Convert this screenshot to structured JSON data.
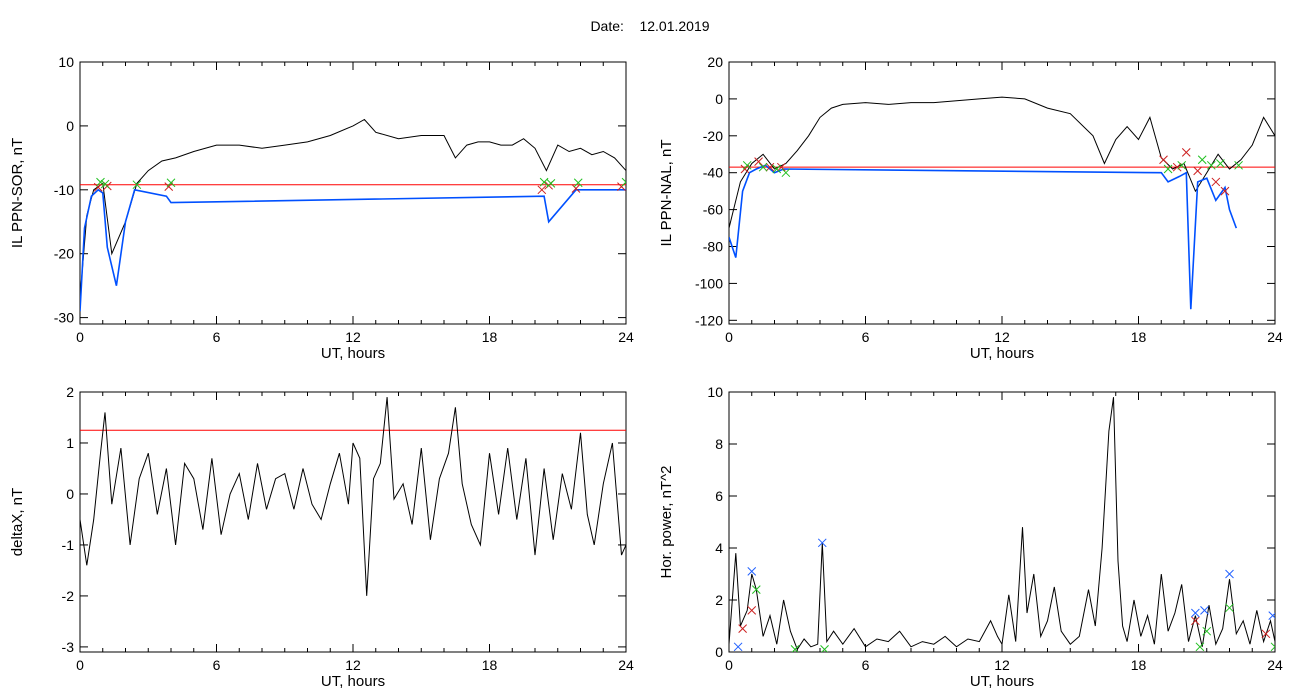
{
  "header": {
    "date_label": "Date:",
    "date_value": "12.01.2019"
  },
  "chart_data": [
    {
      "type": "line",
      "ylabel": "IL PPN-SOR, nT",
      "xlabel": "UT, hours",
      "xlim": [
        0,
        24
      ],
      "ylim": [
        -31,
        10
      ],
      "xticks": [
        0,
        6,
        12,
        18,
        24
      ],
      "yticks": [
        -30,
        -20,
        -10,
        0,
        10
      ],
      "threshold": -9.2,
      "threshold_color": "#ff0000",
      "series": [
        {
          "color": "#000000",
          "x": [
            0,
            0.3,
            0.6,
            1.0,
            1.4,
            2.0,
            2.5,
            3.0,
            3.6,
            4.2,
            5.0,
            6.0,
            7.0,
            8.0,
            9.0,
            10.0,
            11.0,
            12.0,
            12.5,
            13.0,
            14.0,
            15.0,
            16.0,
            16.5,
            17.0,
            17.5,
            18.0,
            18.5,
            19.0,
            19.5,
            20.0,
            20.5,
            21.0,
            21.5,
            22.0,
            22.5,
            23.0,
            23.5,
            24.0
          ],
          "y": [
            -27,
            -14,
            -10,
            -9,
            -20,
            -15,
            -9,
            -7,
            -5.5,
            -5,
            -4,
            -3,
            -3,
            -3.5,
            -3,
            -2.5,
            -1.5,
            0,
            1,
            -1,
            -2,
            -1.5,
            -1.5,
            -5,
            -3,
            -2.5,
            -2.5,
            -3,
            -3,
            -2,
            -3.5,
            -7,
            -3,
            -4,
            -3.5,
            -4.5,
            -4,
            -5,
            -7
          ]
        },
        {
          "color": "#0050ff",
          "x": [
            0,
            0.2,
            0.5,
            0.8,
            1.0,
            1.2,
            1.6,
            2.0,
            2.4,
            3.8,
            4.0,
            20.4,
            20.6,
            21.8,
            24.0
          ],
          "y": [
            -29,
            -16,
            -11,
            -10,
            -10.5,
            -19,
            -25,
            -15,
            -10,
            -11,
            -12,
            -11,
            -15,
            -10,
            -10
          ]
        }
      ],
      "markers_red": [
        [
          0.8,
          -9.6
        ],
        [
          1.2,
          -9.4
        ],
        [
          3.9,
          -9.5
        ],
        [
          20.3,
          -10
        ],
        [
          20.6,
          -9.3
        ],
        [
          21.8,
          -9.8
        ],
        [
          23.8,
          -9.5
        ]
      ],
      "markers_green": [
        [
          0.9,
          -8.8
        ],
        [
          1.1,
          -9.1
        ],
        [
          2.5,
          -9.2
        ],
        [
          4.0,
          -8.9
        ],
        [
          20.4,
          -8.8
        ],
        [
          20.7,
          -9
        ],
        [
          21.9,
          -8.9
        ],
        [
          24.0,
          -8.8
        ]
      ]
    },
    {
      "type": "line",
      "ylabel": "IL PPN-NAL, nT",
      "xlabel": "UT, hours",
      "xlim": [
        0,
        24
      ],
      "ylim": [
        -122,
        20
      ],
      "xticks": [
        0,
        6,
        12,
        18,
        24
      ],
      "yticks": [
        -120,
        -100,
        -80,
        -60,
        -40,
        -20,
        0,
        20
      ],
      "threshold": -37,
      "threshold_color": "#ff0000",
      "series": [
        {
          "color": "#000000",
          "x": [
            0,
            0.5,
            1.0,
            1.5,
            2.0,
            2.5,
            3.0,
            3.5,
            4.0,
            4.5,
            5.0,
            6.0,
            7.0,
            8.0,
            9.0,
            10.0,
            11.0,
            12.0,
            13.0,
            14.0,
            15.0,
            16.0,
            16.5,
            17.0,
            17.5,
            18.0,
            18.5,
            19.0,
            19.5,
            20.0,
            20.5,
            21.0,
            21.5,
            22.0,
            22.5,
            23.0,
            23.5,
            24.0
          ],
          "y": [
            -70,
            -45,
            -35,
            -30,
            -38,
            -35,
            -28,
            -20,
            -10,
            -5,
            -3,
            -2,
            -3,
            -2,
            -2,
            -1,
            0,
            1,
            0,
            -5,
            -8,
            -20,
            -35,
            -22,
            -15,
            -22,
            -10,
            -32,
            -38,
            -35,
            -50,
            -40,
            -30,
            -38,
            -33,
            -25,
            -10,
            -20
          ]
        },
        {
          "color": "#0050ff",
          "x": [
            0,
            0.3,
            0.6,
            0.9,
            1.2,
            1.6,
            2.0,
            2.4,
            19.0,
            19.3,
            19.8,
            20.1,
            20.3,
            20.6,
            21.0,
            21.4,
            21.8,
            22.0,
            22.3
          ],
          "y": [
            -75,
            -86,
            -50,
            -40,
            -38,
            -36,
            -40,
            -38,
            -40,
            -45,
            -42,
            -40,
            -114,
            -45,
            -43,
            -55,
            -48,
            -60,
            -70
          ]
        }
      ],
      "markers_red": [
        [
          0.7,
          -38
        ],
        [
          1.3,
          -34
        ],
        [
          1.8,
          -37
        ],
        [
          2.3,
          -37
        ],
        [
          19.1,
          -33
        ],
        [
          19.7,
          -37
        ],
        [
          20.1,
          -29
        ],
        [
          20.6,
          -39
        ],
        [
          21.4,
          -45
        ],
        [
          21.8,
          -50
        ]
      ],
      "markers_green": [
        [
          0.8,
          -36
        ],
        [
          1.5,
          -37
        ],
        [
          2.1,
          -38
        ],
        [
          2.5,
          -40
        ],
        [
          19.3,
          -38
        ],
        [
          19.9,
          -36
        ],
        [
          20.8,
          -33
        ],
        [
          21.2,
          -36
        ],
        [
          21.6,
          -35
        ],
        [
          22.4,
          -36
        ]
      ]
    },
    {
      "type": "line",
      "ylabel": "deltaX, nT",
      "xlabel": "UT, hours",
      "xlim": [
        0,
        24
      ],
      "ylim": [
        -3.1,
        2
      ],
      "xticks": [
        0,
        6,
        12,
        18,
        24
      ],
      "yticks": [
        -3,
        -2,
        -1,
        0,
        1,
        2
      ],
      "threshold": 1.25,
      "threshold_color": "#ff0000",
      "series": [
        {
          "color": "#000000",
          "x": [
            0,
            0.3,
            0.6,
            0.9,
            1.1,
            1.4,
            1.8,
            2.2,
            2.6,
            3.0,
            3.4,
            3.8,
            4.2,
            4.6,
            5.0,
            5.4,
            5.8,
            6.2,
            6.6,
            7.0,
            7.4,
            7.8,
            8.2,
            8.6,
            9.0,
            9.4,
            9.8,
            10.2,
            10.6,
            11.0,
            11.4,
            11.8,
            12.0,
            12.3,
            12.6,
            12.9,
            13.2,
            13.5,
            13.8,
            14.2,
            14.6,
            15.0,
            15.4,
            15.8,
            16.2,
            16.5,
            16.8,
            17.2,
            17.6,
            18.0,
            18.4,
            18.8,
            19.2,
            19.6,
            20.0,
            20.4,
            20.8,
            21.2,
            21.6,
            22.0,
            22.3,
            22.6,
            23.0,
            23.4,
            23.8,
            24.0
          ],
          "y": [
            -0.5,
            -1.4,
            -0.5,
            0.8,
            1.6,
            -0.2,
            0.9,
            -1.0,
            0.3,
            0.8,
            -0.4,
            0.5,
            -1.0,
            0.6,
            0.3,
            -0.7,
            0.7,
            -0.8,
            0.0,
            0.4,
            -0.5,
            0.6,
            -0.3,
            0.3,
            0.4,
            -0.3,
            0.5,
            -0.2,
            -0.5,
            0.2,
            0.8,
            -0.2,
            1.0,
            0.7,
            -2.0,
            0.3,
            0.6,
            1.9,
            -0.1,
            0.2,
            -0.6,
            0.9,
            -0.9,
            0.3,
            0.8,
            1.7,
            0.2,
            -0.6,
            -1.0,
            0.8,
            -0.4,
            0.9,
            -0.5,
            0.7,
            -1.2,
            0.5,
            -0.9,
            0.4,
            -0.3,
            1.2,
            -0.4,
            -1.0,
            0.2,
            1.0,
            -1.2,
            -1.0
          ]
        }
      ]
    },
    {
      "type": "line",
      "ylabel": "Hor. power, nT^2",
      "xlabel": "UT, hours",
      "xlim": [
        0,
        24
      ],
      "ylim": [
        0,
        10
      ],
      "xticks": [
        0,
        6,
        12,
        18,
        24
      ],
      "yticks": [
        0,
        2,
        4,
        6,
        8,
        10
      ],
      "series": [
        {
          "color": "#000000",
          "x": [
            0,
            0.3,
            0.5,
            0.8,
            1.0,
            1.2,
            1.5,
            1.8,
            2.1,
            2.4,
            2.7,
            3.0,
            3.3,
            3.6,
            3.9,
            4.1,
            4.3,
            4.6,
            5.0,
            5.5,
            6.0,
            6.5,
            7.0,
            7.5,
            8.0,
            8.5,
            9.0,
            9.5,
            10.0,
            10.5,
            11.0,
            11.5,
            11.8,
            12.0,
            12.3,
            12.6,
            12.9,
            13.1,
            13.4,
            13.7,
            14.0,
            14.3,
            14.6,
            15.0,
            15.4,
            15.8,
            16.1,
            16.4,
            16.7,
            16.9,
            17.1,
            17.3,
            17.5,
            17.8,
            18.1,
            18.4,
            18.7,
            19.0,
            19.3,
            19.6,
            19.9,
            20.2,
            20.5,
            20.8,
            21.1,
            21.4,
            21.7,
            22.0,
            22.3,
            22.6,
            22.9,
            23.2,
            23.5,
            23.8,
            24.0
          ],
          "y": [
            0.3,
            3.8,
            1.0,
            1.6,
            3.0,
            2.4,
            0.6,
            1.4,
            0.3,
            2.0,
            0.8,
            0.1,
            0.5,
            0.2,
            0.3,
            4.2,
            0.4,
            0.8,
            0.3,
            0.9,
            0.2,
            0.5,
            0.4,
            0.8,
            0.2,
            0.4,
            0.3,
            0.6,
            0.2,
            0.5,
            0.4,
            1.2,
            0.6,
            0.3,
            2.2,
            0.4,
            4.8,
            1.5,
            3.0,
            0.6,
            1.2,
            2.5,
            0.8,
            0.3,
            0.6,
            2.4,
            1.0,
            4.0,
            8.5,
            9.8,
            3.5,
            1.0,
            0.4,
            2.0,
            0.6,
            1.4,
            0.3,
            3.0,
            0.8,
            1.5,
            2.6,
            0.4,
            1.4,
            0.2,
            1.8,
            0.3,
            0.9,
            2.8,
            0.7,
            1.2,
            0.3,
            1.6,
            0.4,
            1.2,
            0.4
          ]
        }
      ],
      "markers_red": [
        [
          0.6,
          0.9
        ],
        [
          1.0,
          1.6
        ],
        [
          20.5,
          1.2
        ],
        [
          23.6,
          0.7
        ]
      ],
      "markers_green": [
        [
          1.2,
          2.4
        ],
        [
          2.9,
          0.1
        ],
        [
          4.2,
          0.1
        ],
        [
          20.7,
          0.2
        ],
        [
          21.0,
          0.8
        ],
        [
          22.0,
          1.7
        ],
        [
          24.0,
          0.2
        ]
      ],
      "markers_blue": [
        [
          0.4,
          0.2
        ],
        [
          1.0,
          3.1
        ],
        [
          4.1,
          4.2
        ],
        [
          20.5,
          1.5
        ],
        [
          20.9,
          1.6
        ],
        [
          22.0,
          3.0
        ],
        [
          23.9,
          1.4
        ]
      ]
    }
  ]
}
